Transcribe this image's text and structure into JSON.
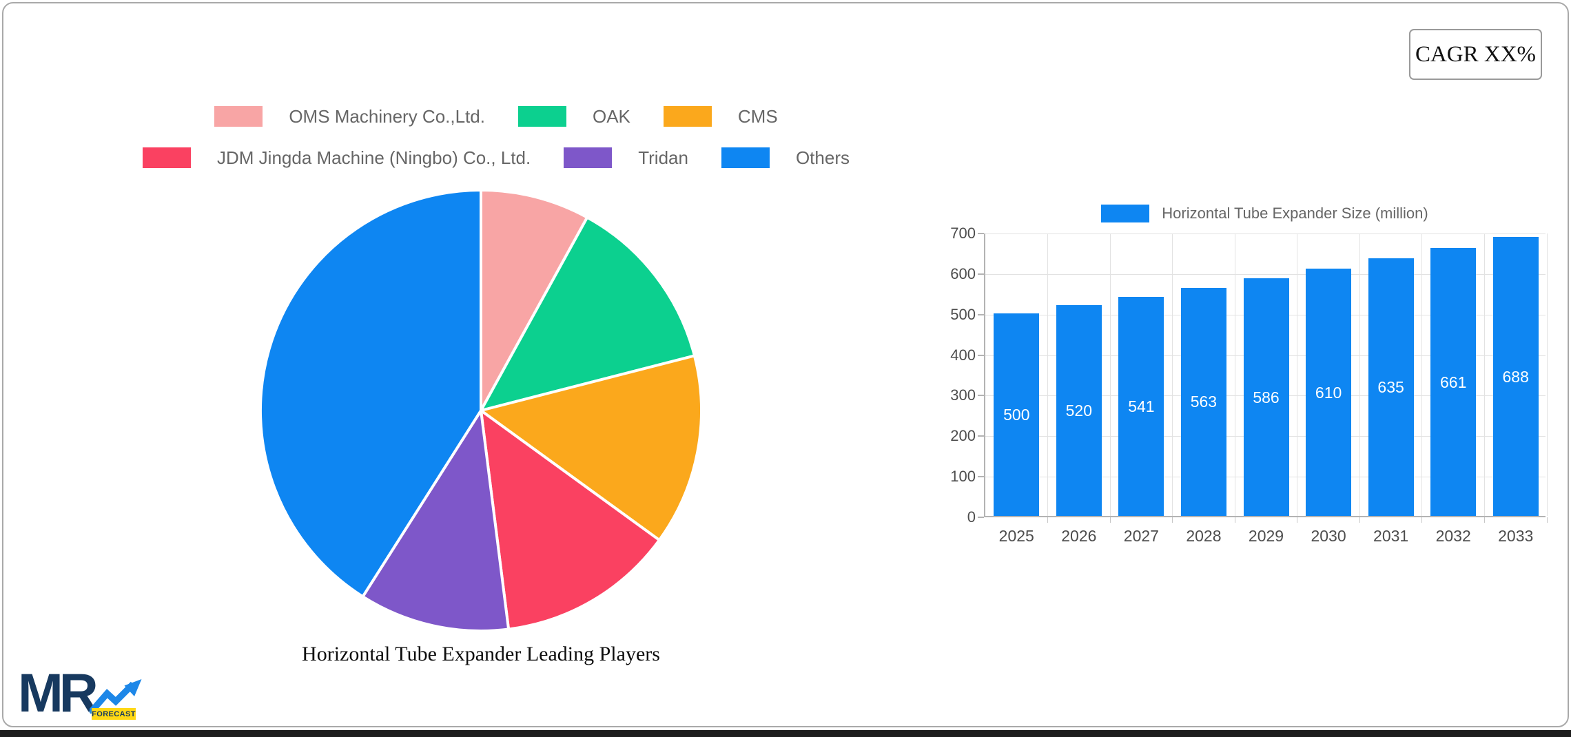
{
  "ui": {
    "cagr_label": "CAGR XX%",
    "logo": {
      "mr": "MR",
      "forecast": "FORECAST"
    },
    "colors": {
      "card_border": "#a9a9a9",
      "bottom_bar": "#1d1d1d",
      "grid_line": "#e2e2e2",
      "axis_line": "#b3b3b3",
      "tick_text": "#4d4d4d",
      "legend_text": "#666666",
      "bar_value_text": "#ffffff",
      "logo_navy": "#17395f",
      "logo_blue": "#1d87e8",
      "logo_yellow": "#ffd814"
    }
  },
  "chart_data": [
    {
      "type": "pie",
      "title": "Horizontal Tube Expander Leading Players",
      "legend_position": "top",
      "start": "12 o'clock, clockwise",
      "slices": [
        {
          "label": "OMS Machinery Co.,Ltd.",
          "percent": 8,
          "color": "#f8a5a5"
        },
        {
          "label": "OAK",
          "percent": 13,
          "color": "#0cd08f"
        },
        {
          "label": "CMS",
          "percent": 14,
          "color": "#fba81c"
        },
        {
          "label": "JDM Jingda Machine (Ningbo) Co., Ltd.",
          "percent": 13,
          "color": "#fa4161"
        },
        {
          "label": "Tridan",
          "percent": 11,
          "color": "#7e57c9"
        },
        {
          "label": "Others",
          "percent": 41,
          "color": "#0e86f2"
        }
      ]
    },
    {
      "type": "bar",
      "title": "Horizontal Tube Expander Size (million)",
      "legend_position": "top",
      "categories": [
        "2025",
        "2026",
        "2027",
        "2028",
        "2029",
        "2030",
        "2031",
        "2032",
        "2033"
      ],
      "values": [
        500,
        520,
        541,
        563,
        586,
        610,
        635,
        661,
        688
      ],
      "bar_color": "#0e86f2",
      "xlabel": "",
      "ylabel": "",
      "ylim": [
        0,
        700
      ],
      "y_ticks": [
        0,
        100,
        200,
        300,
        400,
        500,
        600,
        700
      ],
      "grid": true
    }
  ]
}
